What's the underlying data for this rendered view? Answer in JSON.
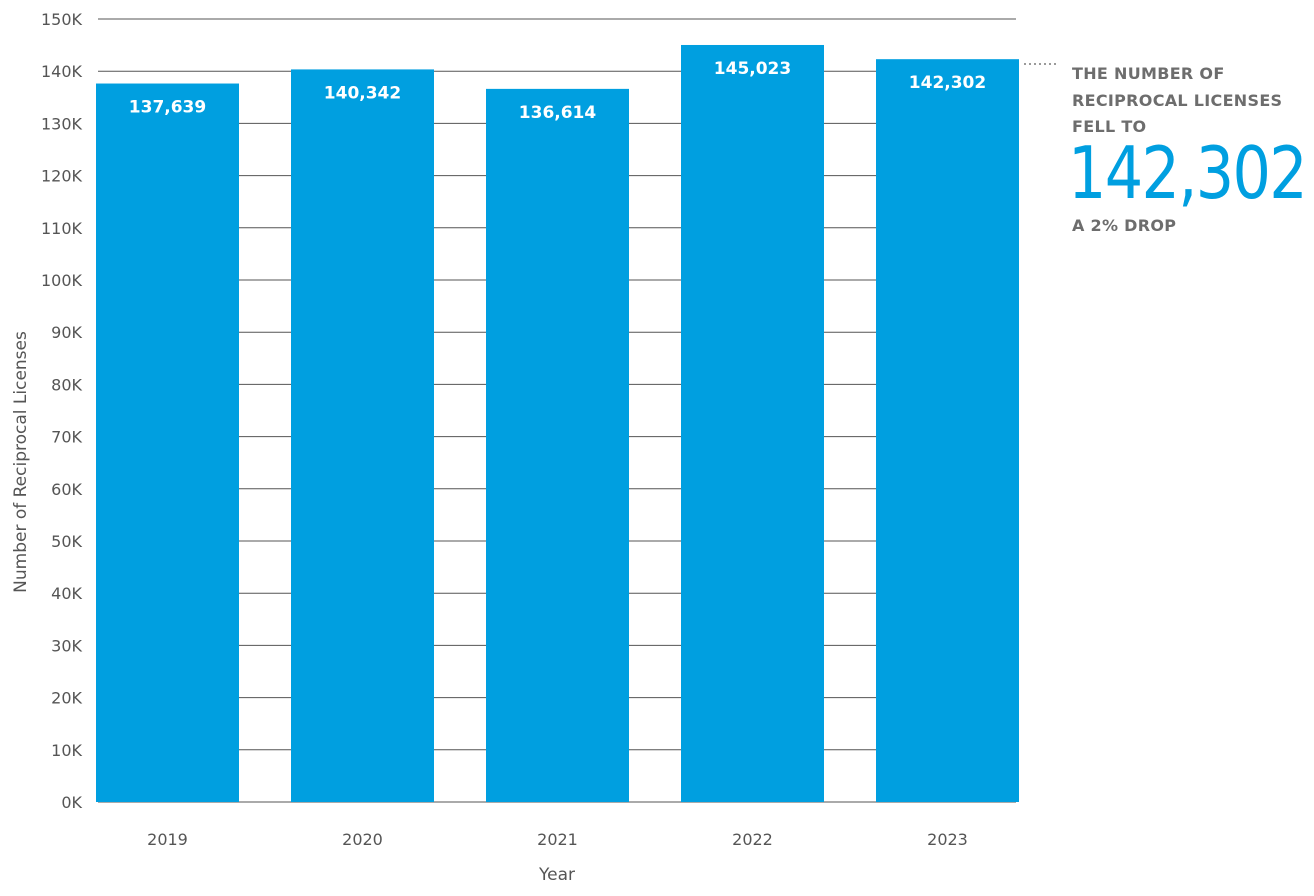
{
  "chart_data": {
    "type": "bar",
    "categories": [
      "2019",
      "2020",
      "2021",
      "2022",
      "2023"
    ],
    "values": [
      137639,
      140342,
      136614,
      145023,
      142302
    ],
    "value_labels": [
      "137,639",
      "140,342",
      "136,614",
      "145,023",
      "142,302"
    ],
    "xlabel": "Year",
    "ylabel": "Number of Reciprocal Licenses",
    "ylim": [
      0,
      150000
    ],
    "yticks": [
      0,
      10000,
      20000,
      30000,
      40000,
      50000,
      60000,
      70000,
      80000,
      90000,
      100000,
      110000,
      120000,
      130000,
      140000,
      150000
    ],
    "ytick_labels": [
      "0K",
      "10K",
      "20K",
      "30K",
      "40K",
      "50K",
      "60K",
      "70K",
      "80K",
      "90K",
      "100K",
      "110K",
      "120K",
      "130K",
      "140K",
      "150K"
    ],
    "grid": true,
    "bar_color": "#009fe0",
    "annotation": {
      "line1": "THE NUMBER OF",
      "line2": "RECIPROCAL LICENSES",
      "line3": "FELL TO",
      "value": "142,302",
      "note": "A 2% DROP",
      "attached_to": "2023"
    }
  }
}
